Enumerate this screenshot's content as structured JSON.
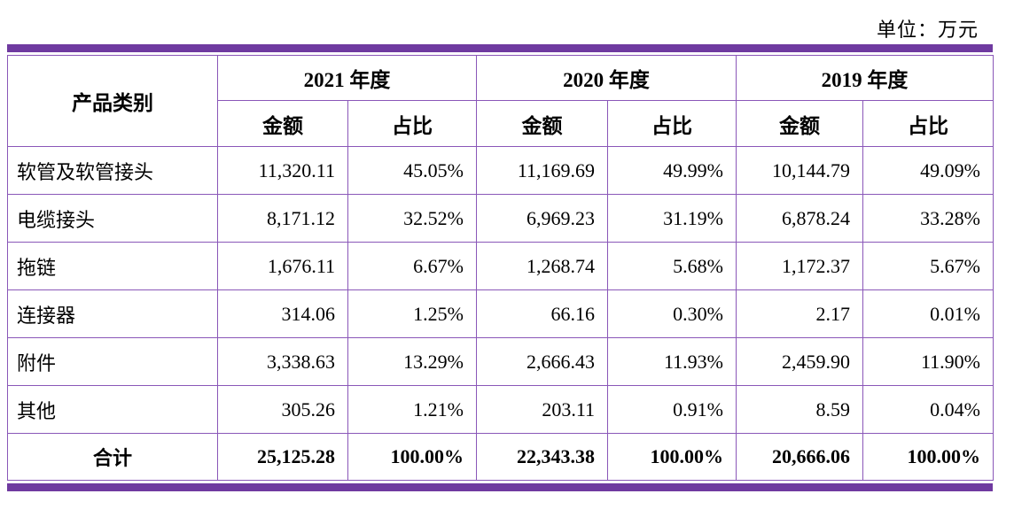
{
  "unit_label": "单位：万元",
  "colors": {
    "band": "#6f3aa0",
    "grid": "#8a57b8",
    "text": "#000000"
  },
  "table": {
    "header": {
      "category": "产品类别",
      "years": [
        "2021 年度",
        "2020 年度",
        "2019 年度"
      ],
      "amount_label": "金额",
      "ratio_label": "占比"
    },
    "rows": [
      {
        "category": "软管及软管接头",
        "cells": [
          "11,320.11",
          "45.05%",
          "11,169.69",
          "49.99%",
          "10,144.79",
          "49.09%"
        ]
      },
      {
        "category": "电缆接头",
        "cells": [
          "8,171.12",
          "32.52%",
          "6,969.23",
          "31.19%",
          "6,878.24",
          "33.28%"
        ]
      },
      {
        "category": "拖链",
        "cells": [
          "1,676.11",
          "6.67%",
          "1,268.74",
          "5.68%",
          "1,172.37",
          "5.67%"
        ]
      },
      {
        "category": "连接器",
        "cells": [
          "314.06",
          "1.25%",
          "66.16",
          "0.30%",
          "2.17",
          "0.01%"
        ]
      },
      {
        "category": "附件",
        "cells": [
          "3,338.63",
          "13.29%",
          "2,666.43",
          "11.93%",
          "2,459.90",
          "11.90%"
        ]
      },
      {
        "category": "其他",
        "cells": [
          "305.26",
          "1.21%",
          "203.11",
          "0.91%",
          "8.59",
          "0.04%"
        ]
      }
    ],
    "total_row": {
      "category": "合计",
      "cells": [
        "25,125.28",
        "100.00%",
        "22,343.38",
        "100.00%",
        "20,666.06",
        "100.00%"
      ]
    }
  }
}
